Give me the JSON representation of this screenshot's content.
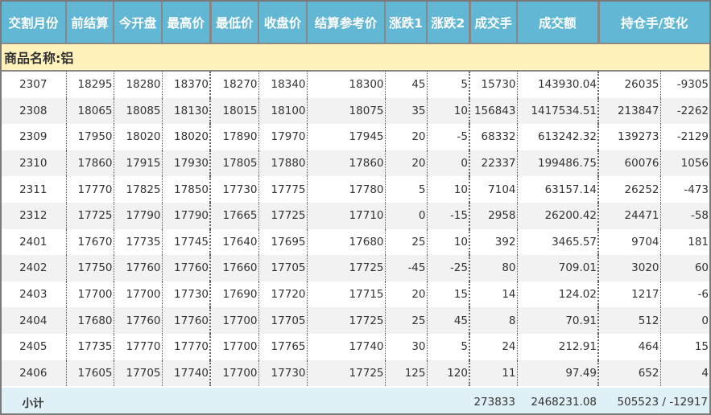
{
  "headers": [
    "交割月份",
    "前结算",
    "今开盘",
    "最高价",
    "最低价",
    "收盘价",
    "结算参考价",
    "涨跌1",
    "涨跌2",
    "成交手",
    "成交额",
    "持仓手/变化"
  ],
  "product_label": "商品名称:铝",
  "rows": [
    [
      "2307",
      "18295",
      "18280",
      "18370",
      "18270",
      "18340",
      "18300",
      "45",
      "5",
      "15730",
      "143930.04",
      "26035",
      "-9305"
    ],
    [
      "2308",
      "18065",
      "18085",
      "18130",
      "18015",
      "18100",
      "18075",
      "35",
      "10",
      "156843",
      "1417534.51",
      "213847",
      "-2262"
    ],
    [
      "2309",
      "17950",
      "18020",
      "18020",
      "17890",
      "17970",
      "17945",
      "20",
      "-5",
      "68332",
      "613242.32",
      "139273",
      "-2129"
    ],
    [
      "2310",
      "17860",
      "17915",
      "17930",
      "17805",
      "17880",
      "17860",
      "20",
      "0",
      "22337",
      "199486.75",
      "60076",
      "1056"
    ],
    [
      "2311",
      "17770",
      "17825",
      "17850",
      "17730",
      "17775",
      "17780",
      "5",
      "10",
      "7104",
      "63157.14",
      "26252",
      "-473"
    ],
    [
      "2312",
      "17725",
      "17790",
      "17790",
      "17665",
      "17725",
      "17710",
      "0",
      "-15",
      "2958",
      "26200.42",
      "24471",
      "-58"
    ],
    [
      "2401",
      "17670",
      "17735",
      "17745",
      "17640",
      "17695",
      "17680",
      "25",
      "10",
      "392",
      "3465.57",
      "9704",
      "181"
    ],
    [
      "2402",
      "17750",
      "17760",
      "17760",
      "17660",
      "17705",
      "17725",
      "-45",
      "-25",
      "80",
      "709.01",
      "3020",
      "60"
    ],
    [
      "2403",
      "17700",
      "17700",
      "17730",
      "17690",
      "17720",
      "17715",
      "20",
      "15",
      "14",
      "124.02",
      "1217",
      "-6"
    ],
    [
      "2404",
      "17680",
      "17760",
      "17760",
      "17700",
      "17705",
      "17725",
      "25",
      "45",
      "8",
      "70.91",
      "512",
      "0"
    ],
    [
      "2405",
      "17735",
      "17770",
      "17770",
      "17700",
      "17765",
      "17740",
      "30",
      "5",
      "24",
      "212.91",
      "464",
      "15"
    ],
    [
      "2406",
      "17605",
      "17705",
      "17740",
      "17700",
      "17730",
      "17725",
      "125",
      "120",
      "11",
      "97.49",
      "652",
      "4"
    ]
  ],
  "subtotal": {
    "label": "小计",
    "volume": "273833",
    "turnover": "2468231.08",
    "holding": "505523 / -12917"
  }
}
